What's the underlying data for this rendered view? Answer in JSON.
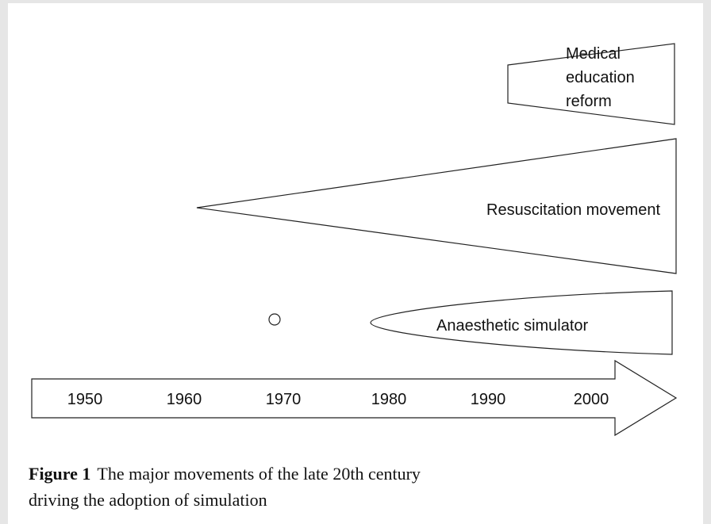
{
  "shapes": [
    {
      "lines": [
        "Medical",
        "education",
        "reform"
      ]
    },
    {
      "lines": [
        "Resuscitation movement"
      ]
    },
    {
      "lines": [
        "Anaesthetic simulator"
      ]
    }
  ],
  "timeline": {
    "years": [
      "1950",
      "1960",
      "1970",
      "1980",
      "1990",
      "2000"
    ]
  },
  "caption": {
    "label": "Figure 1",
    "lines": [
      "The major movements of the late 20th century",
      "driving the adoption of simulation"
    ]
  }
}
